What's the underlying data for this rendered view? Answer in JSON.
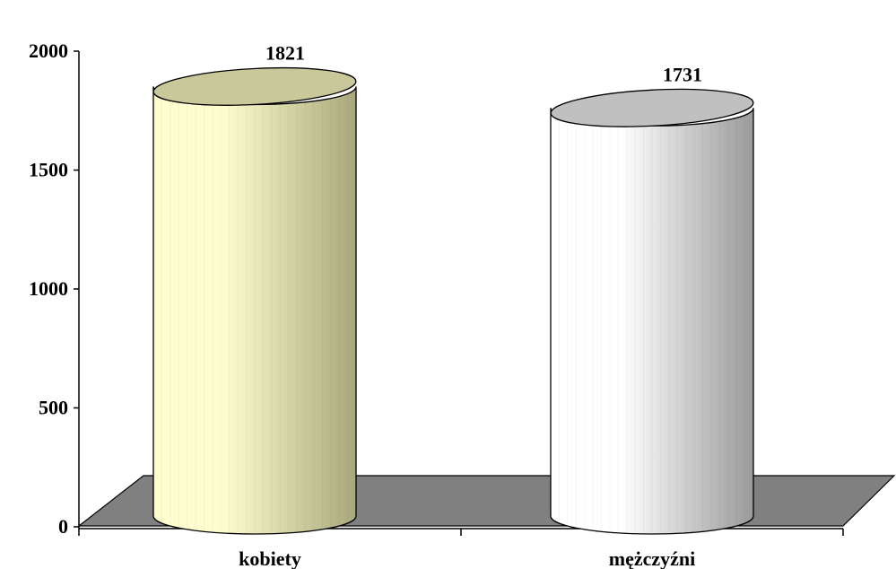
{
  "chart_data": {
    "type": "bar",
    "subtype": "3d-cylinder",
    "title": "",
    "xlabel": "",
    "ylabel": "",
    "categories": [
      "kobiety",
      "mężczyźni"
    ],
    "values": [
      1821,
      1731
    ],
    "data_labels": [
      "1821",
      "1731"
    ],
    "ylim": [
      0,
      2000
    ],
    "yticks": [
      0,
      500,
      1000,
      1500,
      2000
    ],
    "ytick_labels": [
      "0",
      "500",
      "1000",
      "1500",
      "2000"
    ],
    "grid": false,
    "legend": "none",
    "colors": {
      "bars": [
        "#fdfdd0",
        "#ffffff"
      ],
      "bar_shadow": [
        "#a8a87a",
        "#9a9a9a"
      ],
      "bar_tops": [
        "#c8c89a",
        "#c0c0c0"
      ],
      "floor": "#808080",
      "axis": "#000000"
    }
  }
}
